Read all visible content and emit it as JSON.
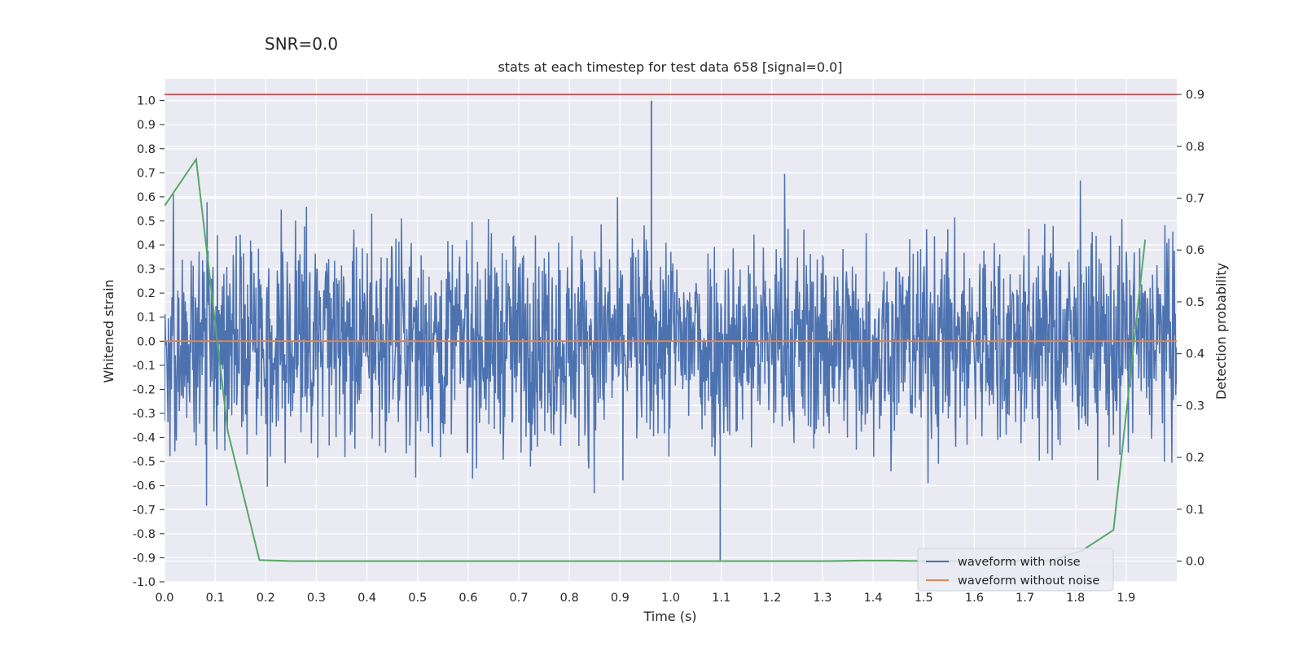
{
  "chart_data": {
    "type": "line",
    "suptitle": "SNR=0.0",
    "title": "stats at each timestep for test data 658 [signal=0.0]",
    "xlabel": "Time (s)",
    "ylabel_left": "Whitened strain",
    "ylabel_right": "Detection probability",
    "xlim": [
      0.0,
      2.0
    ],
    "ylim_left": [
      -1.0,
      1.09
    ],
    "ylim_right": [
      -0.04,
      0.93
    ],
    "x_ticks": [
      "0.0",
      "0.1",
      "0.2",
      "0.3",
      "0.4",
      "0.5",
      "0.6",
      "0.7",
      "0.8",
      "0.9",
      "1.0",
      "1.1",
      "1.2",
      "1.3",
      "1.4",
      "1.5",
      "1.6",
      "1.7",
      "1.8",
      "1.9"
    ],
    "y_ticks_left": [
      "-1.0",
      "-0.9",
      "-0.8",
      "-0.7",
      "-0.6",
      "-0.5",
      "-0.4",
      "-0.3",
      "-0.2",
      "-0.1",
      "0.0",
      "0.1",
      "0.2",
      "0.3",
      "0.4",
      "0.5",
      "0.6",
      "0.7",
      "0.8",
      "0.9",
      "1.0"
    ],
    "y_ticks_right": [
      "0.0",
      "0.1",
      "0.2",
      "0.3",
      "0.4",
      "0.5",
      "0.6",
      "0.7",
      "0.8",
      "0.9"
    ],
    "grid": true,
    "legend_position": "lower-right",
    "threshold_line": {
      "axis": "right",
      "value": 0.9,
      "color": "#c44e52"
    },
    "series": [
      {
        "name": "waveform with noise",
        "axis": "left",
        "color": "#4c72b0",
        "x_start": 0.0,
        "x_end": 2.0,
        "n_samples": 2048,
        "summary": {
          "min": -0.91,
          "max": 1.0,
          "typical_range": [
            -0.5,
            0.5
          ]
        }
      },
      {
        "name": "waveform without noise",
        "axis": "left",
        "color": "#dd8452",
        "x": [
          0.0,
          2.0
        ],
        "y": [
          0.0,
          0.0
        ]
      },
      {
        "name": "detection probability",
        "axis": "right",
        "color": "#55a868",
        "x": [
          0.0,
          0.0625,
          0.125,
          0.1875,
          0.25,
          0.3125,
          0.375,
          0.4375,
          0.5,
          0.5625,
          0.625,
          0.6875,
          0.75,
          0.8125,
          0.875,
          0.9375,
          1.0,
          1.0625,
          1.125,
          1.1875,
          1.25,
          1.3125,
          1.375,
          1.4375,
          1.5,
          1.5625,
          1.625,
          1.6875,
          1.75,
          1.8125,
          1.875,
          1.9375
        ],
        "y": [
          0.685,
          0.775,
          0.25,
          0.002,
          0.0,
          0.0,
          0.0,
          0.0,
          0.0,
          0.0,
          0.0,
          0.0,
          0.0,
          0.0,
          0.0,
          0.0,
          0.0,
          0.0,
          0.0,
          0.0,
          0.0,
          0.0,
          0.001,
          0.001,
          0.0,
          0.0,
          0.0,
          0.0,
          0.001,
          0.02,
          0.06,
          0.62
        ]
      }
    ],
    "legend": [
      "waveform with noise",
      "waveform without noise"
    ]
  }
}
